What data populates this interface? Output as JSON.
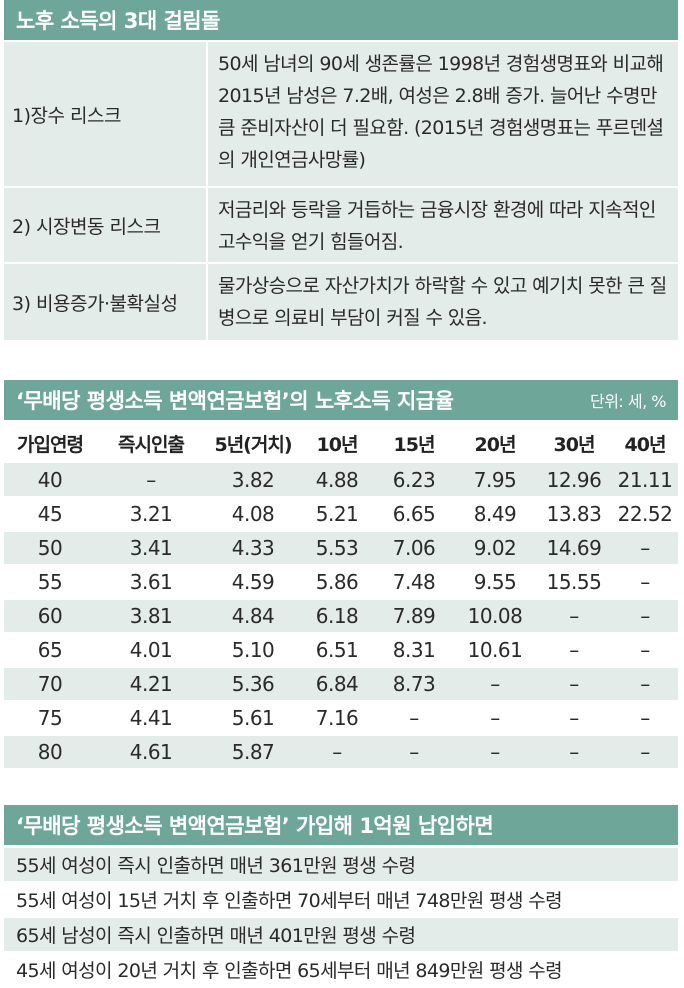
{
  "risks_section": {
    "title": "노후 소득의 3대 걸림돌",
    "items": [
      {
        "name": "1)장수 리스크",
        "description": "50세 남녀의 90세 생존률은 1998년 경험생명표와 비교해 2015년 남성은 7.2배, 여성은 2.8배 증가. 늘어난 수명만큼 준비자산이 더 필요함. (2015년 경험생명표는 푸르덴셜의 개인연금사망률)"
      },
      {
        "name": "2) 시장변동 리스크",
        "description": "저금리와 등락을 거듭하는 금융시장 환경에 따라 지속적인 고수익을 얻기 힘들어짐."
      },
      {
        "name": "3) 비용증가·불확실성",
        "description": "물가상승으로 자산가치가 하락할 수 있고 예기치 못한 큰 질병으로 의료비 부담이 커질 수 있음."
      }
    ]
  },
  "rates_section": {
    "title": "‘무배당 평생소득 변액연금보험’의 노후소득 지급율",
    "unit": "단위: 세, %",
    "columns": [
      "가입연령",
      "즉시인출",
      "5년(거치)",
      "10년",
      "15년",
      "20년",
      "30년",
      "40년"
    ],
    "rows": [
      [
        "40",
        "–",
        "3.82",
        "4.88",
        "6.23",
        "7.95",
        "12.96",
        "21.11"
      ],
      [
        "45",
        "3.21",
        "4.08",
        "5.21",
        "6.65",
        "8.49",
        "13.83",
        "22.52"
      ],
      [
        "50",
        "3.41",
        "4.33",
        "5.53",
        "7.06",
        "9.02",
        "14.69",
        "–"
      ],
      [
        "55",
        "3.61",
        "4.59",
        "5.86",
        "7.48",
        "9.55",
        "15.55",
        "–"
      ],
      [
        "60",
        "3.81",
        "4.84",
        "6.18",
        "7.89",
        "10.08",
        "–",
        "–"
      ],
      [
        "65",
        "4.01",
        "5.10",
        "6.51",
        "8.31",
        "10.61",
        "–",
        "–"
      ],
      [
        "70",
        "4.21",
        "5.36",
        "6.84",
        "8.73",
        "–",
        "–",
        "–"
      ],
      [
        "75",
        "4.41",
        "5.61",
        "7.16",
        "–",
        "–",
        "–",
        "–"
      ],
      [
        "80",
        "4.61",
        "5.87",
        "–",
        "–",
        "–",
        "–",
        "–"
      ]
    ]
  },
  "payout_section": {
    "title": "‘무배당 평생소득 변액연금보험’ 가입해 1억원 납입하면",
    "items": [
      "55세 여성이 즉시 인출하면 매년 361만원 평생 수령",
      "55세 여성이 15년 거치 후 인출하면 70세부터 매년 748만원 평생 수령",
      "65세 남성이 즉시 인출하면 매년 401만원 평생 수령",
      "45세 여성이 20년 거치 후 인출하면 65세부터 매년 849만원 평생 수령"
    ]
  },
  "colors": {
    "header_bg": "#6fa69a",
    "row_tint": "#e3ece8"
  }
}
